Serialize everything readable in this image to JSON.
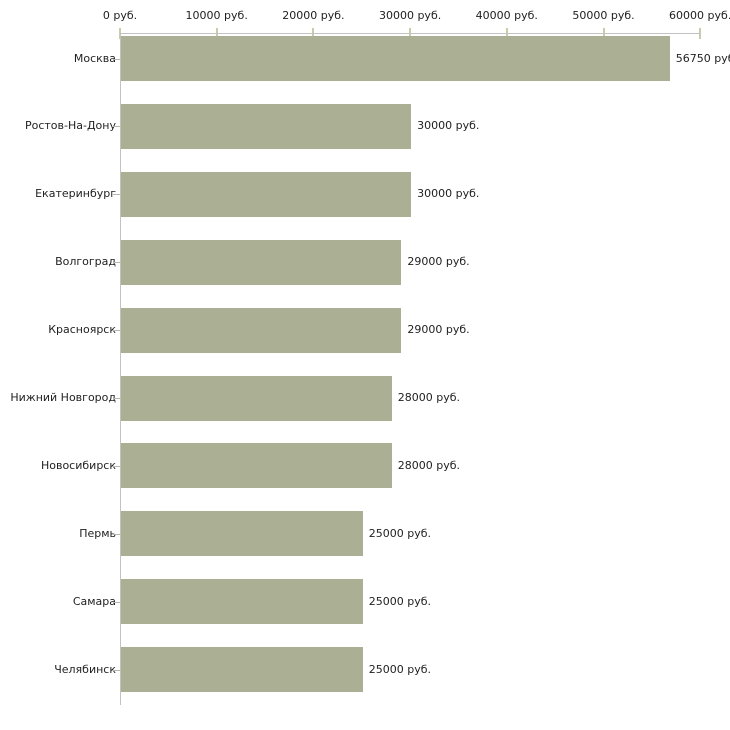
{
  "chart_data": {
    "type": "bar",
    "orientation": "horizontal",
    "title": "",
    "xlabel": "",
    "ylabel": "",
    "unit": "руб.",
    "grid": "off",
    "legend": "none",
    "xlim": [
      0,
      60000
    ],
    "categories": [
      "Москва",
      "Ростов-На-Дону",
      "Екатеринбург",
      "Волгоград",
      "Красноярск",
      "Нижний Новгород",
      "Новосибирск",
      "Пермь",
      "Самара",
      "Челябинск"
    ],
    "values": [
      56750,
      30000,
      30000,
      29000,
      29000,
      28000,
      28000,
      25000,
      25000,
      25000
    ],
    "value_labels": [
      "56750 руб",
      "30000 руб.",
      "30000 руб.",
      "29000 руб.",
      "29000 руб.",
      "28000 руб.",
      "28000 руб.",
      "25000 руб.",
      "25000 руб.",
      "25000 руб."
    ],
    "x_ticks": [
      {
        "value": 0,
        "label": "0 руб."
      },
      {
        "value": 10000,
        "label": "10000 руб."
      },
      {
        "value": 20000,
        "label": "20000 руб."
      },
      {
        "value": 30000,
        "label": "30000 руб."
      },
      {
        "value": 40000,
        "label": "40000 руб."
      },
      {
        "value": 50000,
        "label": "50000 руб."
      },
      {
        "value": 60000,
        "label": "60000 руб."
      }
    ],
    "colors": {
      "bar": "#abb095",
      "axis_line": "#c2c2c2",
      "tick": "#c9cbab",
      "category_tick": "#b6b6aa",
      "text": "#1f1f1f",
      "background": "#ffffff"
    }
  }
}
